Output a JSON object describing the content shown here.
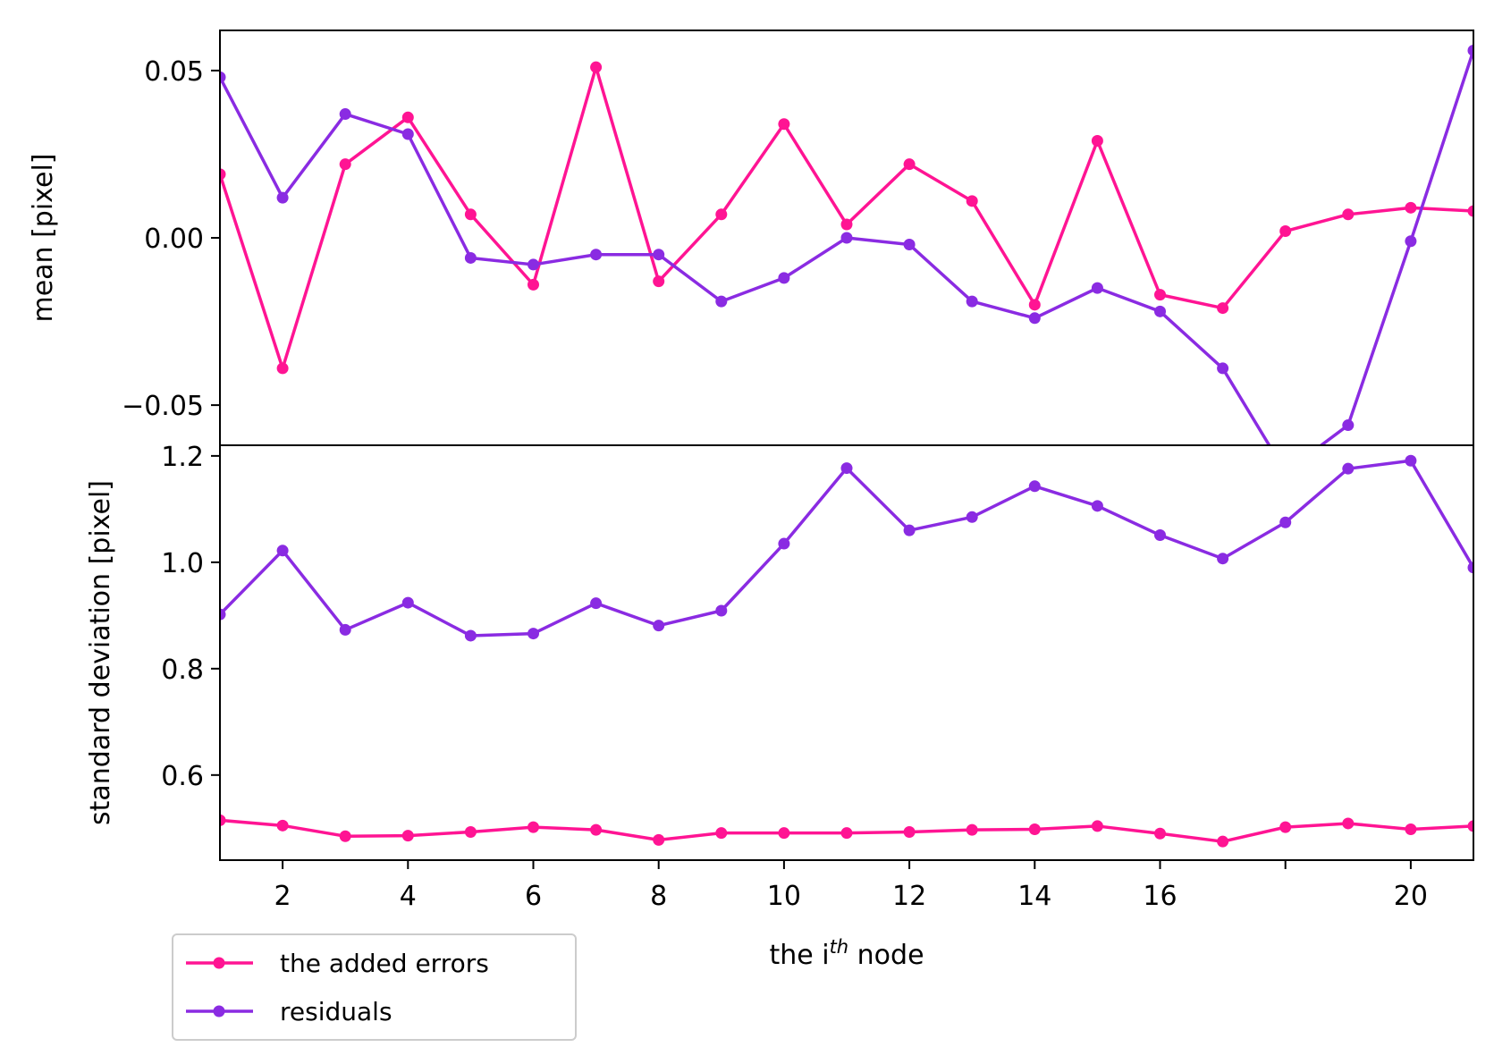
{
  "chart_data": [
    {
      "type": "line",
      "ylabel": "mean [pixel]",
      "ylim": [
        -0.062,
        0.062
      ],
      "yticks": [
        -0.05,
        0.0,
        0.05
      ],
      "ytick_labels": [
        "−0.05",
        "0.00",
        "0.05"
      ],
      "xlim": [
        1,
        21
      ],
      "x": [
        1,
        2,
        3,
        4,
        5,
        6,
        7,
        8,
        9,
        10,
        11,
        12,
        13,
        14,
        15,
        16,
        17,
        18,
        19,
        20,
        21
      ],
      "series": [
        {
          "name": "the added errors",
          "color": "#ff1493",
          "values": [
            0.019,
            -0.039,
            0.022,
            0.036,
            0.007,
            -0.014,
            0.051,
            -0.013,
            0.007,
            0.034,
            0.004,
            0.022,
            0.011,
            -0.02,
            0.029,
            -0.017,
            -0.021,
            0.002,
            0.007,
            0.009,
            0.008
          ]
        },
        {
          "name": "residuals",
          "color": "#8a2be2",
          "values": [
            0.048,
            0.012,
            0.037,
            0.031,
            -0.006,
            -0.008,
            -0.005,
            -0.005,
            -0.019,
            -0.012,
            0.0,
            -0.002,
            -0.019,
            -0.024,
            -0.015,
            -0.022,
            -0.039,
            -0.07,
            -0.056,
            -0.001,
            0.056
          ]
        }
      ]
    },
    {
      "type": "line",
      "ylabel": "standard deviation [pixel]",
      "xlabel_prefix": "the i",
      "xlabel_sup": "th",
      "xlabel_suffix": " node",
      "ylim": [
        0.44,
        1.22
      ],
      "yticks": [
        0.6,
        0.8,
        1.0,
        1.2
      ],
      "ytick_labels": [
        "0.6",
        "0.8",
        "1.0",
        "1.2"
      ],
      "xlim": [
        1,
        21
      ],
      "xticks": [
        2,
        4,
        6,
        8,
        10,
        12,
        14,
        16,
        18,
        20
      ],
      "xtick_labels": [
        "2",
        "4",
        "6",
        "8",
        "10",
        "12",
        "14",
        "16",
        "",
        "20"
      ],
      "x": [
        1,
        2,
        3,
        4,
        5,
        6,
        7,
        8,
        9,
        10,
        11,
        12,
        13,
        14,
        15,
        16,
        17,
        18,
        19,
        20,
        21
      ],
      "series": [
        {
          "name": "the added errors",
          "color": "#ff1493",
          "values": [
            0.515,
            0.505,
            0.485,
            0.486,
            0.493,
            0.502,
            0.497,
            0.478,
            0.491,
            0.491,
            0.491,
            0.493,
            0.497,
            0.498,
            0.504,
            0.49,
            0.475,
            0.502,
            0.509,
            0.498,
            0.504
          ]
        },
        {
          "name": "residuals",
          "color": "#8a2be2",
          "values": [
            0.902,
            1.022,
            0.873,
            0.924,
            0.862,
            0.866,
            0.923,
            0.881,
            0.909,
            1.035,
            1.177,
            1.06,
            1.085,
            1.143,
            1.106,
            1.051,
            1.007,
            1.075,
            1.176,
            1.191,
            0.99
          ]
        }
      ]
    }
  ],
  "legend": {
    "placement": "lower-left, below plot",
    "entries": [
      "the added errors",
      "residuals"
    ]
  }
}
